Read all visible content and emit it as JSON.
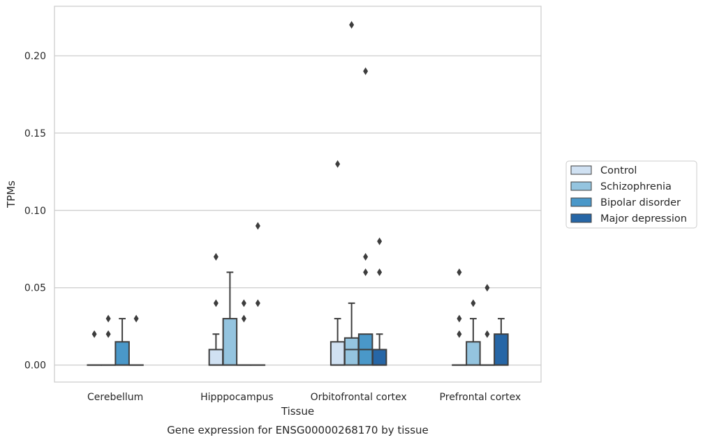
{
  "chart_data": {
    "type": "box",
    "title": "Gene expression for ENSG00000268170 by tissue",
    "xlabel": "Tissue",
    "ylabel": "TPMs",
    "ylim": [
      -0.011,
      0.232
    ],
    "yticks": [
      0.0,
      0.05,
      0.1,
      0.15,
      0.2
    ],
    "ytick_labels": [
      "0.00",
      "0.05",
      "0.10",
      "0.15",
      "0.20"
    ],
    "grid": true,
    "legend_position": "right",
    "categories": [
      "Cerebellum",
      "Hipppocampus",
      "Orbitofrontal cortex",
      "Prefrontal cortex"
    ],
    "series": [
      {
        "name": "Control",
        "color": "#d0e1f2",
        "boxes": [
          {
            "q1": 0,
            "median": 0,
            "q3": 0,
            "whisker_low": 0,
            "whisker_high": 0,
            "outliers": [
              0.02
            ]
          },
          {
            "q1": 0,
            "median": 0,
            "q3": 0.01,
            "whisker_low": 0,
            "whisker_high": 0.02,
            "outliers": [
              0.04,
              0.07
            ]
          },
          {
            "q1": 0,
            "median": 0,
            "q3": 0.015,
            "whisker_low": 0,
            "whisker_high": 0.03,
            "outliers": [
              0.13
            ]
          },
          {
            "q1": 0,
            "median": 0,
            "q3": 0,
            "whisker_low": 0,
            "whisker_high": 0,
            "outliers": [
              0.02,
              0.03,
              0.06
            ]
          }
        ]
      },
      {
        "name": "Schizophrenia",
        "color": "#94c4df",
        "boxes": [
          {
            "q1": 0,
            "median": 0,
            "q3": 0,
            "whisker_low": 0,
            "whisker_high": 0,
            "outliers": [
              0.02,
              0.03
            ]
          },
          {
            "q1": 0,
            "median": 0,
            "q3": 0.03,
            "whisker_low": 0,
            "whisker_high": 0.06,
            "outliers": []
          },
          {
            "q1": 0,
            "median": 0.01,
            "q3": 0.0175,
            "whisker_low": 0,
            "whisker_high": 0.04,
            "outliers": [
              0.22
            ]
          },
          {
            "q1": 0,
            "median": 0,
            "q3": 0.015,
            "whisker_low": 0,
            "whisker_high": 0.03,
            "outliers": [
              0.04
            ]
          }
        ]
      },
      {
        "name": "Bipolar disorder",
        "color": "#4a98c9",
        "boxes": [
          {
            "q1": 0,
            "median": 0,
            "q3": 0.015,
            "whisker_low": 0,
            "whisker_high": 0.03,
            "outliers": []
          },
          {
            "q1": 0,
            "median": 0,
            "q3": 0,
            "whisker_low": 0,
            "whisker_high": 0,
            "outliers": [
              0.03,
              0.04
            ]
          },
          {
            "q1": 0,
            "median": 0.01,
            "q3": 0.02,
            "whisker_low": 0,
            "whisker_high": 0.02,
            "outliers": [
              0.06,
              0.07,
              0.19
            ]
          },
          {
            "q1": 0,
            "median": 0,
            "q3": 0,
            "whisker_low": 0,
            "whisker_high": 0,
            "outliers": [
              0.02,
              0.05
            ]
          }
        ]
      },
      {
        "name": "Major depression",
        "color": "#2666a6",
        "boxes": [
          {
            "q1": 0,
            "median": 0,
            "q3": 0,
            "whisker_low": 0,
            "whisker_high": 0,
            "outliers": [
              0.03
            ]
          },
          {
            "q1": 0,
            "median": 0,
            "q3": 0,
            "whisker_low": 0,
            "whisker_high": 0,
            "outliers": [
              0.04,
              0.09
            ]
          },
          {
            "q1": 0,
            "median": 0,
            "q3": 0.01,
            "whisker_low": 0,
            "whisker_high": 0.02,
            "outliers": [
              0.06,
              0.08
            ]
          },
          {
            "q1": 0,
            "median": 0,
            "q3": 0.02,
            "whisker_low": 0,
            "whisker_high": 0.03,
            "outliers": []
          }
        ]
      }
    ]
  }
}
